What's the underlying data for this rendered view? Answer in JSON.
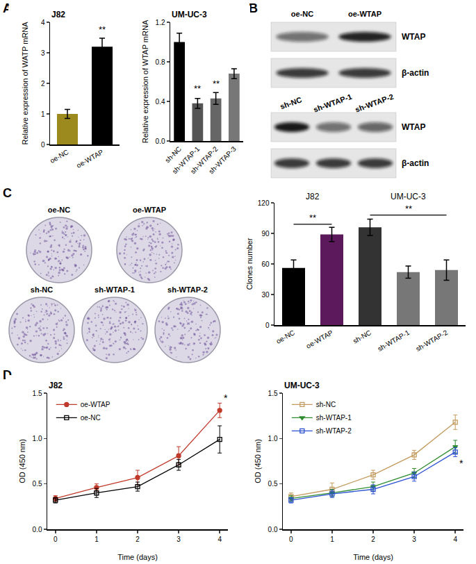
{
  "panel_labels": [
    "A",
    "B",
    "C",
    "D"
  ],
  "blot": {
    "groups": [
      {
        "lanes": [
          "oe-NC",
          "oe-WTAP"
        ],
        "rows": [
          {
            "label": "WTAP",
            "intensity": [
              0.55,
              0.9
            ]
          },
          {
            "label": "β-actin",
            "intensity": [
              0.8,
              0.8
            ]
          }
        ]
      },
      {
        "lanes": [
          "sh-NC",
          "sh-WTAP-1",
          "sh-WTAP-2"
        ],
        "rows": [
          {
            "label": "WTAP",
            "intensity": [
              0.95,
              0.55,
              0.6
            ]
          },
          {
            "label": "β-actin",
            "intensity": [
              0.8,
              0.8,
              0.8
            ]
          }
        ]
      }
    ]
  },
  "colony_plates": [
    "oe-NC",
    "oe-WTAP",
    "sh-NC",
    "sh-WTAP-1",
    "sh-WTAP-2"
  ],
  "chart_data": [
    {
      "type": "bar",
      "title": "J82",
      "categories": [
        "oe-NC",
        "oe-WTAP"
      ],
      "values": [
        1.0,
        3.2
      ],
      "errors": [
        0.15,
        0.28
      ],
      "colors": [
        "#9c8a1e",
        "#000000"
      ],
      "y_label": "Relative expression of WATP mRNA",
      "ylim": [
        0,
        4
      ],
      "yticks": [
        0,
        1,
        2,
        3,
        4
      ],
      "grid": false,
      "annotations": [
        {
          "text": "**",
          "category": "oe-WTAP",
          "y": 3.55
        }
      ]
    },
    {
      "type": "bar",
      "title": "UM-UC-3",
      "categories": [
        "sh-NC",
        "sh-WTAP-1",
        "sh-WTAP-2",
        "sh-WTAP-3"
      ],
      "values": [
        1.0,
        0.38,
        0.43,
        0.68
      ],
      "errors": [
        0.09,
        0.05,
        0.06,
        0.05
      ],
      "colors": [
        "#000000",
        "#555555",
        "#666666",
        "#777777"
      ],
      "y_label": "Relative expression of WTAP mRNA",
      "ylim": [
        0,
        1.2
      ],
      "yticks": [
        {
          "value": 0,
          "label": "0.0"
        },
        0.4,
        0.8,
        1.2
      ],
      "grid": false,
      "annotations": [
        {
          "text": "**",
          "category": "sh-WTAP-1",
          "y": 0.46
        },
        {
          "text": "**",
          "category": "sh-WTAP-2",
          "y": 0.51
        }
      ]
    },
    {
      "type": "bar",
      "categories": [
        "oe-NC",
        "oe-WTAP",
        "sh-NC",
        "sh-WTAP-1",
        "sh-WTAP-2"
      ],
      "values": [
        56,
        89,
        96,
        52,
        54
      ],
      "errors": [
        8,
        7,
        8,
        6,
        10
      ],
      "colors": [
        "#000000",
        "#5c1a5c",
        "#333333",
        "#777777",
        "#777777"
      ],
      "y_label": "Clones number",
      "ylim": [
        0,
        120
      ],
      "yticks": [
        0,
        30,
        60,
        90,
        120
      ],
      "grid": false,
      "group_labels": [
        {
          "text": "J82",
          "from": "oe-NC",
          "to": "oe-WTAP"
        },
        {
          "text": "UM-UC-3",
          "from": "sh-NC",
          "to": "sh-WTAP-2"
        }
      ],
      "brackets": [
        {
          "text": "**",
          "from": "oe-NC",
          "to": "oe-WTAP",
          "y": 99
        },
        {
          "text": "**",
          "from": "sh-NC",
          "to": "sh-WTAP-2",
          "y": 108
        }
      ]
    },
    {
      "type": "line",
      "title": "J82",
      "x": [
        0,
        1,
        2,
        3,
        4
      ],
      "xlim": [
        -0.2,
        4.2
      ],
      "xticks": [
        0,
        1,
        2,
        3,
        4
      ],
      "ylim": [
        0,
        1.5
      ],
      "yticks": [
        {
          "value": 0,
          "label": "0.0"
        },
        0.5,
        {
          "value": 1,
          "label": "1.0"
        },
        1.5
      ],
      "x_label": "Time (days)",
      "y_label": "OD (450 nm)",
      "legend": "top left",
      "grid": false,
      "series": [
        {
          "name": "oe-WTAP",
          "color": "#c0392b",
          "marker": "circle",
          "values": [
            0.34,
            0.46,
            0.57,
            0.81,
            1.31
          ],
          "errors": [
            0.03,
            0.04,
            0.08,
            0.1,
            0.08
          ]
        },
        {
          "name": "oe-NC",
          "color": "#000000",
          "marker": "square-open",
          "values": [
            0.32,
            0.4,
            0.47,
            0.71,
            0.99
          ],
          "errors": [
            0.03,
            0.05,
            0.05,
            0.06,
            0.15
          ]
        }
      ],
      "annotations": [
        {
          "text": "*",
          "x": 4,
          "y": 1.45
        }
      ]
    },
    {
      "type": "line",
      "title": "UM-UC-3",
      "x": [
        0,
        1,
        2,
        3,
        4
      ],
      "xlim": [
        -0.2,
        4.2
      ],
      "xticks": [
        0,
        1,
        2,
        3,
        4
      ],
      "ylim": [
        0,
        1.5
      ],
      "yticks": [
        {
          "value": 0,
          "label": "0.0"
        },
        0.5,
        {
          "value": 1,
          "label": "1.0"
        },
        1.5
      ],
      "x_label": "Time (days)",
      "y_label": "OD (450 nm)",
      "legend": "top left",
      "grid": false,
      "series": [
        {
          "name": "sh-NC",
          "color": "#c49a5e",
          "marker": "square-open",
          "values": [
            0.36,
            0.44,
            0.6,
            0.82,
            1.18
          ],
          "errors": [
            0.04,
            0.07,
            0.05,
            0.05,
            0.08
          ]
        },
        {
          "name": "sh-WTAP-1",
          "color": "#2e8b2e",
          "marker": "triangle-down",
          "values": [
            0.34,
            0.4,
            0.47,
            0.62,
            0.91
          ],
          "errors": [
            0.03,
            0.04,
            0.05,
            0.05,
            0.07
          ]
        },
        {
          "name": "sh-WTAP-2",
          "color": "#2a4fd0",
          "marker": "square-open",
          "values": [
            0.32,
            0.39,
            0.44,
            0.58,
            0.85
          ],
          "errors": [
            0.03,
            0.04,
            0.05,
            0.05,
            0.05
          ]
        }
      ],
      "annotations": [
        {
          "text": "*",
          "x": 4,
          "y": 0.73
        }
      ]
    }
  ]
}
